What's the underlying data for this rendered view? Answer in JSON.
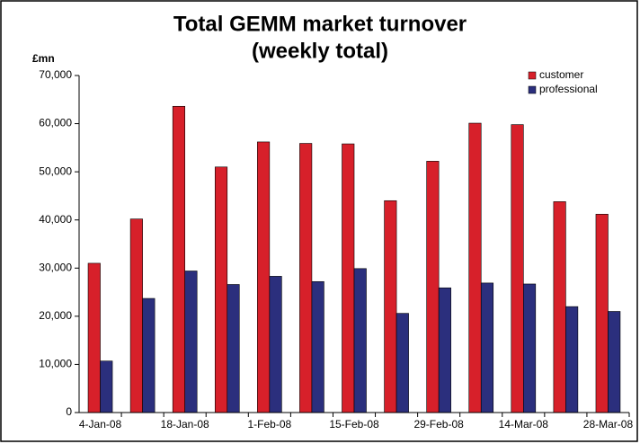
{
  "chart_data": {
    "type": "bar",
    "title": "Total GEMM market turnover",
    "subtitle": "(weekly total)",
    "y_label": "£mn",
    "categories": [
      "4-Jan-08",
      null,
      "18-Jan-08",
      null,
      "1-Feb-08",
      null,
      "15-Feb-08",
      null,
      "29-Feb-08",
      null,
      "14-Mar-08",
      null,
      "28-Mar-08"
    ],
    "series": [
      {
        "name": "customer",
        "color": "#d7202a",
        "values": [
          31000,
          40200,
          63600,
          51000,
          56200,
          55900,
          55800,
          44000,
          52200,
          60100,
          59800,
          43800,
          41200
        ]
      },
      {
        "name": "professional",
        "color": "#2b2f7d",
        "values": [
          10700,
          23700,
          29400,
          26600,
          28300,
          27200,
          29900,
          20600,
          25900,
          26900,
          26700,
          22000,
          21000
        ]
      }
    ],
    "ylim": [
      0,
      70000
    ],
    "yticks": [
      0,
      {
        "value": 10000,
        "label": "10,000"
      },
      {
        "value": 20000,
        "label": "20,000"
      },
      {
        "value": 30000,
        "label": "30,000"
      },
      {
        "value": 40000,
        "label": "40,000"
      },
      {
        "value": 50000,
        "label": "50,000"
      },
      {
        "value": 60000,
        "label": "60,000"
      },
      {
        "value": 70000,
        "label": "70,000"
      }
    ],
    "legend": "top-right"
  }
}
